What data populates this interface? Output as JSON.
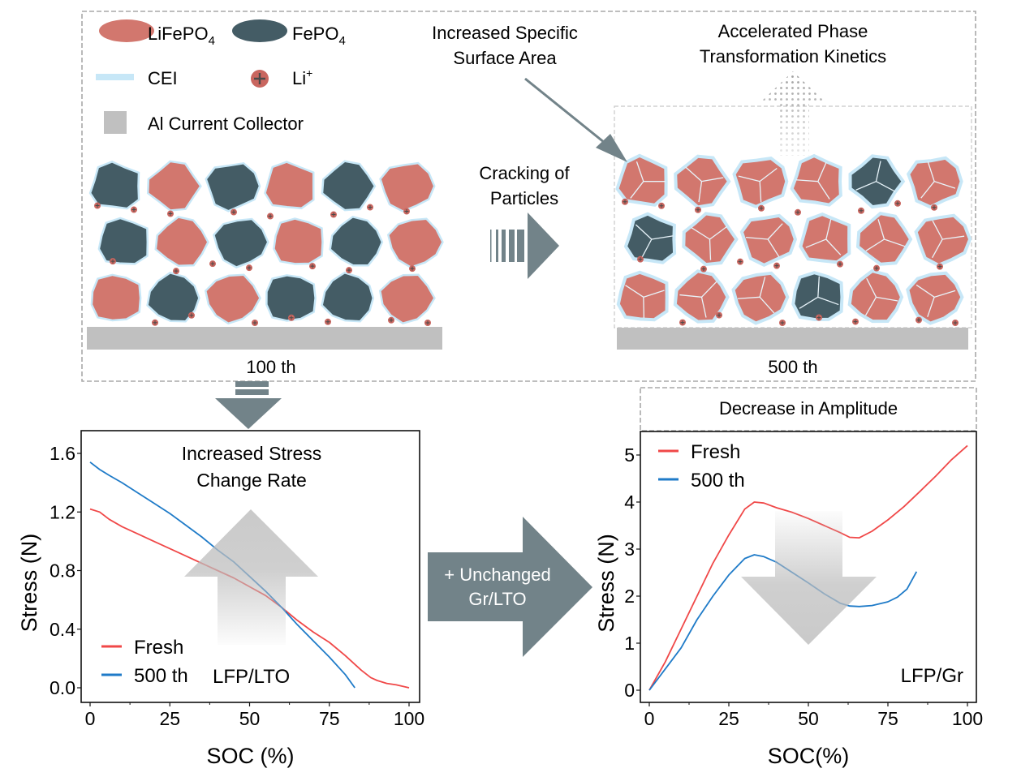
{
  "legend": {
    "lifepo4": "LiFePO",
    "lifepo4_sub": "4",
    "fepo4": "FePO",
    "fepo4_sub": "4",
    "cei": "CEI",
    "li_ion": "Li",
    "li_ion_sup": "+",
    "al_collector": "Al Current Collector"
  },
  "colors": {
    "lifepo4": "#d2776e",
    "fepo4": "#445c65",
    "cei": "#c7e7f7",
    "li_ion": "#c9665f",
    "collector": "#c0c0c0",
    "arrow": "#728389",
    "fresh": "#f04848",
    "cycled": "#1f7bc8"
  },
  "annotations": {
    "surface_area_line1": "Increased Specific",
    "surface_area_line2": "Surface Area",
    "phase_line1": "Accelerated Phase",
    "phase_line2": "Transformation Kinetics",
    "cracking_line1": "Cracking of",
    "cracking_line2": "Particles",
    "cycle_100": "100 th",
    "cycle_500": "500 th",
    "unchanged_line1": "+ Unchanged",
    "unchanged_line2": "Gr/LTO",
    "decrease_amplitude": "Decrease in Amplitude",
    "stress_rate_line1": "Increased Stress",
    "stress_rate_line2": "Change Rate"
  },
  "chart_data": [
    {
      "type": "line",
      "title": "",
      "annotation": "LFP/LTO",
      "inset_title": [
        "Increased Stress",
        "Change Rate"
      ],
      "xlabel": "SOC (%)",
      "ylabel": "Stress (N)",
      "xlim": [
        -3,
        103
      ],
      "ylim": [
        -0.1,
        1.7
      ],
      "xticks": [
        0,
        25,
        50,
        75,
        100
      ],
      "yticks": [
        0.0,
        0.4,
        0.8,
        1.2,
        1.6
      ],
      "ytick_labels": [
        "0.0",
        "0.4",
        "0.8",
        "1.2",
        "1.6"
      ],
      "legend_position": "bottom-left",
      "grid": false,
      "series": [
        {
          "name": "Fresh",
          "color": "#f04848",
          "x": [
            0,
            3,
            6,
            10,
            15,
            20,
            25,
            30,
            35,
            40,
            45,
            50,
            55,
            60,
            65,
            70,
            75,
            80,
            85,
            88,
            90,
            93,
            96,
            100
          ],
          "y": [
            1.22,
            1.2,
            1.15,
            1.1,
            1.05,
            1.0,
            0.95,
            0.9,
            0.85,
            0.8,
            0.75,
            0.69,
            0.63,
            0.55,
            0.46,
            0.38,
            0.31,
            0.22,
            0.12,
            0.07,
            0.05,
            0.03,
            0.02,
            0.0
          ]
        },
        {
          "name": "500 th",
          "color": "#1f7bc8",
          "x": [
            0,
            3,
            6,
            10,
            15,
            20,
            25,
            30,
            35,
            40,
            45,
            50,
            55,
            60,
            65,
            70,
            75,
            80,
            83
          ],
          "y": [
            1.54,
            1.49,
            1.45,
            1.4,
            1.33,
            1.26,
            1.19,
            1.11,
            1.03,
            0.94,
            0.86,
            0.76,
            0.66,
            0.55,
            0.43,
            0.32,
            0.21,
            0.09,
            0.0
          ]
        }
      ]
    },
    {
      "type": "line",
      "title": "Decrease in Amplitude",
      "annotation": "LFP/Gr",
      "xlabel": "SOC(%)",
      "ylabel": "Stress (N)",
      "xlim": [
        -3,
        103
      ],
      "ylim": [
        -0.3,
        5.4
      ],
      "xticks": [
        0,
        25,
        50,
        75,
        100
      ],
      "yticks": [
        0,
        1,
        2,
        3,
        4,
        5
      ],
      "ytick_labels": [
        "0",
        "1",
        "2",
        "3",
        "4",
        "5"
      ],
      "legend_position": "top-left",
      "grid": false,
      "series": [
        {
          "name": "Fresh",
          "color": "#f04848",
          "x": [
            0,
            5,
            10,
            15,
            20,
            25,
            30,
            33,
            36,
            40,
            45,
            50,
            55,
            60,
            63,
            66,
            70,
            75,
            80,
            85,
            90,
            95,
            100
          ],
          "y": [
            0,
            0.6,
            1.3,
            2.0,
            2.7,
            3.3,
            3.85,
            4.0,
            3.98,
            3.88,
            3.78,
            3.65,
            3.5,
            3.35,
            3.25,
            3.24,
            3.38,
            3.62,
            3.9,
            4.22,
            4.55,
            4.9,
            5.2
          ]
        },
        {
          "name": "500 th",
          "color": "#1f7bc8",
          "x": [
            0,
            5,
            10,
            15,
            20,
            25,
            30,
            33,
            36,
            40,
            45,
            50,
            55,
            60,
            63,
            66,
            70,
            75,
            78,
            81,
            84
          ],
          "y": [
            0,
            0.45,
            0.9,
            1.5,
            2.0,
            2.45,
            2.8,
            2.88,
            2.84,
            2.72,
            2.5,
            2.28,
            2.05,
            1.85,
            1.79,
            1.78,
            1.8,
            1.88,
            1.98,
            2.15,
            2.52
          ]
        }
      ]
    }
  ]
}
